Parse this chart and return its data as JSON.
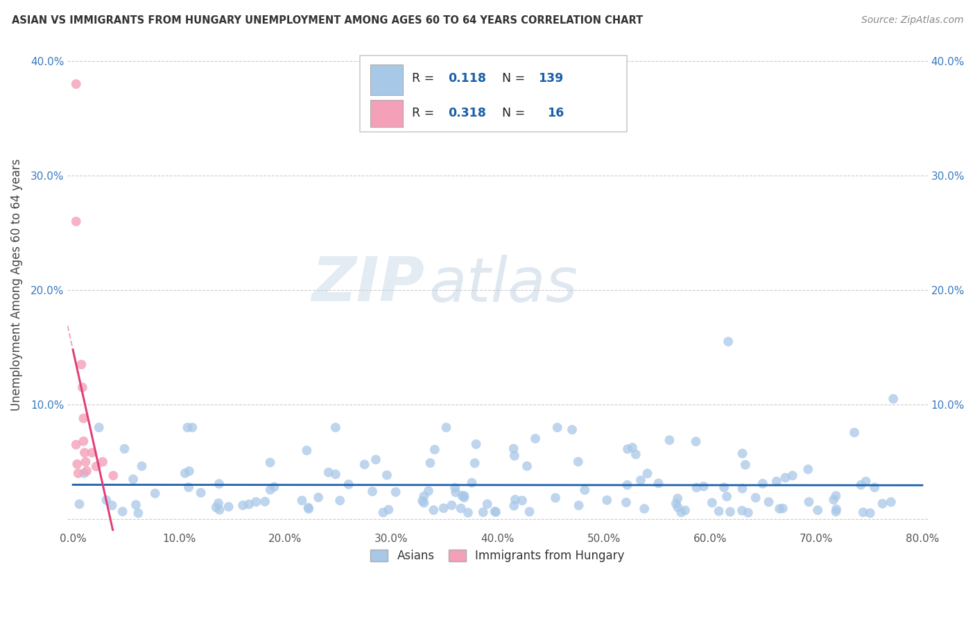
{
  "title": "ASIAN VS IMMIGRANTS FROM HUNGARY UNEMPLOYMENT AMONG AGES 60 TO 64 YEARS CORRELATION CHART",
  "source": "Source: ZipAtlas.com",
  "ylabel": "Unemployment Among Ages 60 to 64 years",
  "xlim": [
    -0.005,
    0.805
  ],
  "ylim": [
    -0.01,
    0.42
  ],
  "xticks": [
    0.0,
    0.1,
    0.2,
    0.3,
    0.4,
    0.5,
    0.6,
    0.7,
    0.8
  ],
  "xticklabels": [
    "0.0%",
    "10.0%",
    "20.0%",
    "30.0%",
    "40.0%",
    "50.0%",
    "60.0%",
    "70.0%",
    "80.0%"
  ],
  "yticks": [
    0.0,
    0.1,
    0.2,
    0.3,
    0.4
  ],
  "yticklabels": [
    "",
    "10.0%",
    "20.0%",
    "30.0%",
    "40.0%"
  ],
  "asian_color": "#a8c8e8",
  "hungary_color": "#f4a0b8",
  "asian_line_color": "#1a5fa8",
  "hungary_line_color": "#e0407a",
  "R_asian": 0.118,
  "N_asian": 139,
  "R_hungary": 0.318,
  "N_hungary": 16,
  "watermark_zip": "ZIP",
  "watermark_atlas": "atlas",
  "legend_label1": "Asians",
  "legend_label2": "Immigrants from Hungary"
}
